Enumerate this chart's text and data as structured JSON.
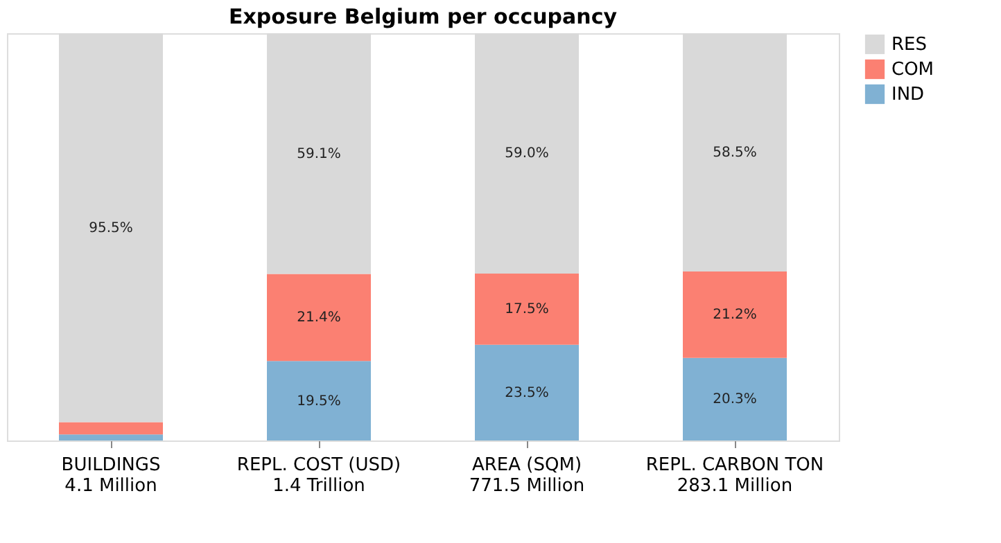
{
  "chart_data": {
    "type": "bar",
    "title": "Exposure Belgium per occupancy",
    "stacked": true,
    "categories": [
      "BUILDINGS\n4.1 Million",
      "REPL. COST (USD)\n1.4 Trillion",
      "AREA (SQM)\n771.5 Million",
      "REPL. CARBON TON\n283.1 Million"
    ],
    "series": [
      {
        "name": "IND",
        "color": "#80b1d3",
        "values": [
          1.5,
          19.5,
          23.5,
          20.3
        ],
        "value_labels": [
          null,
          "19.5%",
          "23.5%",
          "20.3%"
        ]
      },
      {
        "name": "COM",
        "color": "#fb8072",
        "values": [
          3.0,
          21.4,
          17.5,
          21.2
        ],
        "value_labels": [
          null,
          "21.4%",
          "17.5%",
          "21.2%"
        ]
      },
      {
        "name": "RES",
        "color": "#d9d9d9",
        "values": [
          95.5,
          59.1,
          59.0,
          58.5
        ],
        "value_labels": [
          "95.5%",
          "59.1%",
          "59.0%",
          "58.5%"
        ]
      }
    ],
    "ylim": [
      0,
      100
    ],
    "tick_labels": "x",
    "legend": "top right",
    "grid": false
  }
}
